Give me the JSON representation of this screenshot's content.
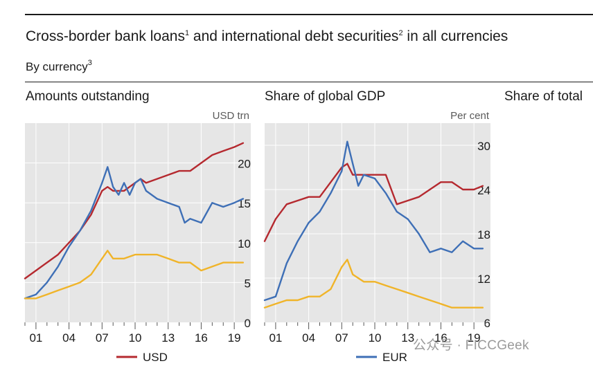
{
  "header": {
    "title_pre": "Cross-border bank loans",
    "title_sup1": "1",
    "title_mid": " and international debt securities",
    "title_sup2": "2",
    "title_post": " in all currencies",
    "subtitle": "By currency",
    "subtitle_sup": "3"
  },
  "panels": {
    "left_title": "Amounts outstanding",
    "mid_title": "Share of global GDP",
    "right_title": "Share of total"
  },
  "watermark": "公众号 · FICCGeek",
  "colors": {
    "usd": "#b5292f",
    "eur": "#3e6fb6",
    "other": "#f0b429",
    "panel_bg": "#e6e6e6",
    "grid": "#ffffff"
  },
  "chart_data": [
    {
      "type": "line",
      "title": "Amounts outstanding",
      "unit_label": "USD trn",
      "xlim": [
        2000,
        2020.5
      ],
      "ylim": [
        0,
        25
      ],
      "x_tick_labels": [
        "01",
        "04",
        "07",
        "10",
        "13",
        "16",
        "19"
      ],
      "y_ticks": [
        0,
        5,
        10,
        15,
        20
      ],
      "grid": true,
      "series": [
        {
          "name": "USD",
          "color": "#b5292f",
          "x": [
            2000,
            2001,
            2002,
            2003,
            2004,
            2005,
            2006,
            2007,
            2007.5,
            2008,
            2009,
            2010,
            2010.5,
            2011,
            2012,
            2013,
            2014,
            2015,
            2016,
            2017,
            2018,
            2019,
            2019.8
          ],
          "y": [
            5.5,
            6.5,
            7.5,
            8.5,
            10,
            11.5,
            13.5,
            16.5,
            17,
            16.5,
            16.5,
            17.5,
            18,
            17.5,
            18,
            18.5,
            19,
            19,
            20,
            21,
            21.5,
            22,
            22.5
          ]
        },
        {
          "name": "EUR",
          "color": "#3e6fb6",
          "x": [
            2000,
            2001,
            2002,
            2003,
            2004,
            2005,
            2006,
            2007,
            2007.5,
            2008,
            2008.5,
            2009,
            2009.5,
            2010,
            2010.5,
            2011,
            2012,
            2013,
            2014,
            2014.5,
            2015,
            2016,
            2017,
            2018,
            2019,
            2019.8
          ],
          "y": [
            3,
            3.5,
            5,
            7,
            9.5,
            11.5,
            14,
            17.5,
            19.5,
            17,
            16,
            17.5,
            16,
            17.5,
            18,
            16.5,
            15.5,
            15,
            14.5,
            12.5,
            13,
            12.5,
            15,
            14.5,
            15,
            15.5
          ]
        },
        {
          "name": "",
          "color": "#f0b429",
          "x": [
            2000,
            2001,
            2002,
            2003,
            2004,
            2005,
            2006,
            2007,
            2007.5,
            2008,
            2009,
            2010,
            2011,
            2012,
            2013,
            2014,
            2015,
            2016,
            2017,
            2018,
            2019,
            2019.8
          ],
          "y": [
            3,
            3,
            3.5,
            4,
            4.5,
            5,
            6,
            8,
            9,
            8,
            8,
            8.5,
            8.5,
            8.5,
            8,
            7.5,
            7.5,
            6.5,
            7,
            7.5,
            7.5,
            7.5
          ]
        }
      ],
      "legend": [
        {
          "name": "USD",
          "color": "#b5292f"
        }
      ]
    },
    {
      "type": "line",
      "title": "Share of global GDP",
      "unit_label": "Per cent",
      "xlim": [
        2000,
        2020.5
      ],
      "ylim": [
        6,
        33
      ],
      "x_tick_labels": [
        "01",
        "04",
        "07",
        "10",
        "13",
        "16",
        "19"
      ],
      "y_ticks": [
        6,
        12,
        18,
        24,
        30
      ],
      "grid": true,
      "series": [
        {
          "name": "USD",
          "color": "#b5292f",
          "x": [
            2000,
            2001,
            2002,
            2003,
            2004,
            2005,
            2006,
            2007,
            2007.5,
            2008,
            2009,
            2010,
            2011,
            2012,
            2013,
            2014,
            2015,
            2016,
            2017,
            2018,
            2019,
            2019.8
          ],
          "y": [
            17,
            20,
            22,
            22.5,
            23,
            23,
            25,
            27,
            27.5,
            26,
            26,
            26,
            26,
            22,
            22.5,
            23,
            24,
            25,
            25,
            24,
            24,
            24.5
          ]
        },
        {
          "name": "EUR",
          "color": "#3e6fb6",
          "x": [
            2000,
            2001,
            2002,
            2003,
            2004,
            2005,
            2006,
            2007,
            2007.5,
            2008,
            2008.5,
            2009,
            2010,
            2011,
            2012,
            2013,
            2014,
            2015,
            2016,
            2017,
            2018,
            2019,
            2019.8
          ],
          "y": [
            9,
            9.5,
            14,
            17,
            19.5,
            21,
            23.5,
            26.5,
            30.5,
            27.5,
            24.5,
            26,
            25.5,
            23.5,
            21,
            20,
            18,
            15.5,
            16,
            15.5,
            17,
            16,
            16
          ]
        },
        {
          "name": "",
          "color": "#f0b429",
          "x": [
            2000,
            2001,
            2002,
            2003,
            2004,
            2005,
            2006,
            2007,
            2007.5,
            2008,
            2009,
            2010,
            2011,
            2012,
            2013,
            2014,
            2015,
            2016,
            2017,
            2018,
            2019,
            2019.8
          ],
          "y": [
            8,
            8.5,
            9,
            9,
            9.5,
            9.5,
            10.5,
            13.5,
            14.5,
            12.5,
            11.5,
            11.5,
            11,
            10.5,
            10,
            9.5,
            9,
            8.5,
            8,
            8,
            8,
            8
          ]
        }
      ],
      "legend": [
        {
          "name": "EUR",
          "color": "#3e6fb6"
        }
      ]
    }
  ]
}
